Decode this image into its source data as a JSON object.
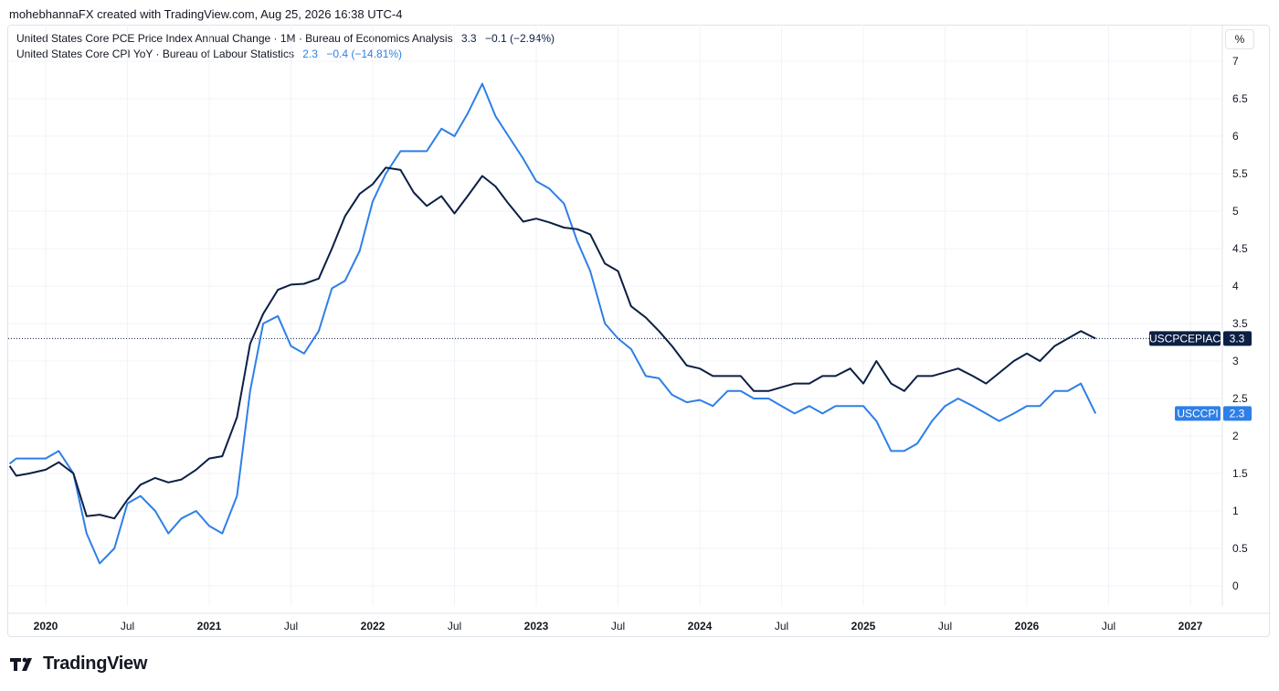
{
  "header": {
    "text": "mohebhannaFX created with TradingView.com, Aug 25, 2026 16:38 UTC-4"
  },
  "legend": [
    {
      "title": "United States Core PCE Price Index Annual Change · 1M · Bureau of Economics Analysis",
      "value": "3.3",
      "change": "−0.1 (−2.94%)",
      "color": "#0c1f44"
    },
    {
      "title": "United States Core CPI YoY · Bureau of Labour Statistics",
      "value": "2.3",
      "change": "−0.4 (−14.81%)",
      "color": "#2e7fe8"
    }
  ],
  "unit_label": "%",
  "footer": {
    "brand": "TradingView"
  },
  "chart_data": {
    "type": "line",
    "y_ticks": [
      "0",
      "0.5",
      "1",
      "1.5",
      "2",
      "2.5",
      "3",
      "3.5",
      "4",
      "4.5",
      "5",
      "5.5",
      "6",
      "6.5",
      "7"
    ],
    "x_ticks": [
      {
        "label": "2020",
        "t": 2020.0,
        "year": true
      },
      {
        "label": "Jul",
        "t": 2020.5,
        "year": false
      },
      {
        "label": "2021",
        "t": 2021.0,
        "year": true
      },
      {
        "label": "Jul",
        "t": 2021.5,
        "year": false
      },
      {
        "label": "2022",
        "t": 2022.0,
        "year": true
      },
      {
        "label": "Jul",
        "t": 2022.5,
        "year": false
      },
      {
        "label": "2023",
        "t": 2023.0,
        "year": true
      },
      {
        "label": "Jul",
        "t": 2023.5,
        "year": false
      },
      {
        "label": "2024",
        "t": 2024.0,
        "year": true
      },
      {
        "label": "Jul",
        "t": 2024.5,
        "year": false
      },
      {
        "label": "2025",
        "t": 2025.0,
        "year": true
      },
      {
        "label": "Jul",
        "t": 2025.5,
        "year": false
      },
      {
        "label": "2026",
        "t": 2026.0,
        "year": true
      },
      {
        "label": "Jul",
        "t": 2026.5,
        "year": false
      },
      {
        "label": "2027",
        "t": 2027.0,
        "year": true
      }
    ],
    "ylim": [
      0,
      7
    ],
    "grid": true,
    "series": [
      {
        "name": "USCPCEPIAC",
        "color": "#0c1f44",
        "last_value": "3.3",
        "points": [
          [
            2019.78,
            1.6
          ],
          [
            2019.82,
            1.47
          ],
          [
            2019.9,
            1.5
          ],
          [
            2020.0,
            1.55
          ],
          [
            2020.08,
            1.65
          ],
          [
            2020.17,
            1.5
          ],
          [
            2020.25,
            0.93
          ],
          [
            2020.33,
            0.95
          ],
          [
            2020.42,
            0.9
          ],
          [
            2020.5,
            1.15
          ],
          [
            2020.58,
            1.35
          ],
          [
            2020.67,
            1.44
          ],
          [
            2020.75,
            1.38
          ],
          [
            2020.83,
            1.42
          ],
          [
            2020.92,
            1.55
          ],
          [
            2021.0,
            1.7
          ],
          [
            2021.08,
            1.73
          ],
          [
            2021.17,
            2.25
          ],
          [
            2021.25,
            3.23
          ],
          [
            2021.33,
            3.63
          ],
          [
            2021.42,
            3.95
          ],
          [
            2021.5,
            4.02
          ],
          [
            2021.58,
            4.03
          ],
          [
            2021.67,
            4.1
          ],
          [
            2021.75,
            4.5
          ],
          [
            2021.83,
            4.93
          ],
          [
            2021.92,
            5.23
          ],
          [
            2022.0,
            5.36
          ],
          [
            2022.08,
            5.58
          ],
          [
            2022.17,
            5.55
          ],
          [
            2022.25,
            5.25
          ],
          [
            2022.33,
            5.07
          ],
          [
            2022.42,
            5.2
          ],
          [
            2022.5,
            4.97
          ],
          [
            2022.58,
            5.2
          ],
          [
            2022.67,
            5.47
          ],
          [
            2022.75,
            5.33
          ],
          [
            2022.83,
            5.1
          ],
          [
            2022.92,
            4.86
          ],
          [
            2023.0,
            4.9
          ],
          [
            2023.08,
            4.85
          ],
          [
            2023.17,
            4.78
          ],
          [
            2023.25,
            4.76
          ],
          [
            2023.33,
            4.69
          ],
          [
            2023.42,
            4.3
          ],
          [
            2023.5,
            4.2
          ],
          [
            2023.58,
            3.73
          ],
          [
            2023.67,
            3.58
          ],
          [
            2023.75,
            3.4
          ],
          [
            2023.83,
            3.2
          ],
          [
            2023.92,
            2.94
          ],
          [
            2024.0,
            2.9
          ],
          [
            2024.08,
            2.8
          ],
          [
            2024.17,
            2.8
          ],
          [
            2024.25,
            2.8
          ],
          [
            2024.33,
            2.6
          ],
          [
            2024.42,
            2.6
          ],
          [
            2024.5,
            2.65
          ],
          [
            2024.58,
            2.7
          ],
          [
            2024.67,
            2.7
          ],
          [
            2024.75,
            2.8
          ],
          [
            2024.83,
            2.8
          ],
          [
            2024.92,
            2.9
          ],
          [
            2025.0,
            2.7
          ],
          [
            2025.08,
            3.0
          ],
          [
            2025.17,
            2.7
          ],
          [
            2025.25,
            2.6
          ],
          [
            2025.33,
            2.8
          ],
          [
            2025.42,
            2.8
          ],
          [
            2025.5,
            2.85
          ],
          [
            2025.58,
            2.9
          ],
          [
            2025.67,
            2.8
          ],
          [
            2025.75,
            2.7
          ],
          [
            2025.83,
            2.84
          ],
          [
            2025.92,
            3.0
          ],
          [
            2026.0,
            3.1
          ],
          [
            2026.08,
            3.0
          ],
          [
            2026.17,
            3.2
          ],
          [
            2026.25,
            3.3
          ],
          [
            2026.33,
            3.4
          ],
          [
            2026.42,
            3.3
          ]
        ]
      },
      {
        "name": "USCCPI",
        "color": "#2e7fe8",
        "last_value": "2.3",
        "points": [
          [
            2019.78,
            1.63
          ],
          [
            2019.82,
            1.7
          ],
          [
            2019.9,
            1.7
          ],
          [
            2020.0,
            1.7
          ],
          [
            2020.08,
            1.8
          ],
          [
            2020.17,
            1.5
          ],
          [
            2020.25,
            0.7
          ],
          [
            2020.33,
            0.3
          ],
          [
            2020.42,
            0.5
          ],
          [
            2020.5,
            1.1
          ],
          [
            2020.58,
            1.2
          ],
          [
            2020.67,
            1.0
          ],
          [
            2020.75,
            0.7
          ],
          [
            2020.83,
            0.9
          ],
          [
            2020.92,
            1.0
          ],
          [
            2021.0,
            0.8
          ],
          [
            2021.08,
            0.7
          ],
          [
            2021.17,
            1.2
          ],
          [
            2021.25,
            2.6
          ],
          [
            2021.33,
            3.5
          ],
          [
            2021.42,
            3.6
          ],
          [
            2021.5,
            3.2
          ],
          [
            2021.58,
            3.1
          ],
          [
            2021.67,
            3.4
          ],
          [
            2021.75,
            3.97
          ],
          [
            2021.83,
            4.07
          ],
          [
            2021.92,
            4.47
          ],
          [
            2022.0,
            5.13
          ],
          [
            2022.08,
            5.5
          ],
          [
            2022.17,
            5.8
          ],
          [
            2022.25,
            5.8
          ],
          [
            2022.33,
            5.8
          ],
          [
            2022.42,
            6.1
          ],
          [
            2022.5,
            6.0
          ],
          [
            2022.58,
            6.3
          ],
          [
            2022.67,
            6.7
          ],
          [
            2022.75,
            6.27
          ],
          [
            2022.83,
            6.0
          ],
          [
            2022.92,
            5.7
          ],
          [
            2023.0,
            5.4
          ],
          [
            2023.08,
            5.3
          ],
          [
            2023.17,
            5.1
          ],
          [
            2023.25,
            4.6
          ],
          [
            2023.33,
            4.2
          ],
          [
            2023.42,
            3.5
          ],
          [
            2023.5,
            3.3
          ],
          [
            2023.58,
            3.16
          ],
          [
            2023.67,
            2.8
          ],
          [
            2023.75,
            2.77
          ],
          [
            2023.83,
            2.55
          ],
          [
            2023.92,
            2.45
          ],
          [
            2024.0,
            2.48
          ],
          [
            2024.08,
            2.4
          ],
          [
            2024.17,
            2.6
          ],
          [
            2024.25,
            2.6
          ],
          [
            2024.33,
            2.5
          ],
          [
            2024.42,
            2.5
          ],
          [
            2024.5,
            2.4
          ],
          [
            2024.58,
            2.3
          ],
          [
            2024.67,
            2.4
          ],
          [
            2024.75,
            2.3
          ],
          [
            2024.83,
            2.4
          ],
          [
            2024.92,
            2.4
          ],
          [
            2025.0,
            2.4
          ],
          [
            2025.08,
            2.2
          ],
          [
            2025.17,
            1.8
          ],
          [
            2025.25,
            1.8
          ],
          [
            2025.33,
            1.9
          ],
          [
            2025.42,
            2.2
          ],
          [
            2025.5,
            2.4
          ],
          [
            2025.58,
            2.5
          ],
          [
            2025.67,
            2.4
          ],
          [
            2025.75,
            2.3
          ],
          [
            2025.83,
            2.2
          ],
          [
            2025.92,
            2.3
          ],
          [
            2026.0,
            2.4
          ],
          [
            2026.08,
            2.4
          ],
          [
            2026.17,
            2.6
          ],
          [
            2026.25,
            2.6
          ],
          [
            2026.33,
            2.7
          ],
          [
            2026.42,
            2.3
          ]
        ]
      }
    ]
  }
}
